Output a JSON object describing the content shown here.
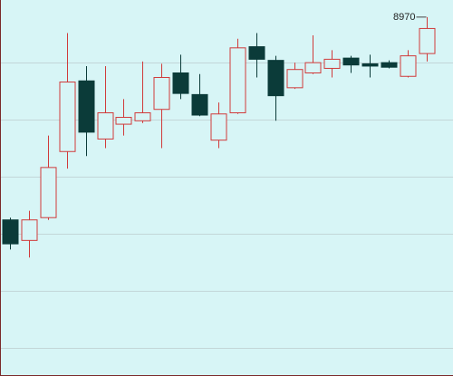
{
  "chart_data": {
    "type": "candlestick",
    "open": [
      8792,
      8774,
      8794,
      8852,
      8914,
      8863,
      8876,
      8879,
      8889,
      8921,
      8902,
      8862,
      8886,
      8944,
      8932,
      8908,
      8921,
      8925,
      8934,
      8929,
      8930,
      8918,
      8938
    ],
    "high": [
      8794,
      8800,
      8866,
      8956,
      8927,
      8927,
      8898,
      8931,
      8929,
      8937,
      8920,
      8895,
      8951,
      8956,
      8936,
      8930,
      8954,
      8941,
      8936,
      8937,
      8932,
      8941,
      8970
    ],
    "low": [
      8766,
      8759,
      8792,
      8837,
      8848,
      8855,
      8866,
      8877,
      8855,
      8898,
      8883,
      8855,
      8885,
      8917,
      8879,
      8907,
      8920,
      8917,
      8921,
      8917,
      8925,
      8917,
      8931
    ],
    "close": [
      8771,
      8792,
      8838,
      8913,
      8869,
      8886,
      8882,
      8886,
      8917,
      8903,
      8884,
      8885,
      8943,
      8933,
      8901,
      8924,
      8930,
      8933,
      8928,
      8927,
      8926,
      8936,
      8960
    ],
    "up_color": "#d03a3a",
    "down_color": "#0b3b39",
    "ylim": [
      8655,
      8985
    ],
    "yticks": [
      8680,
      8730,
      8780,
      8830,
      8880,
      8930
    ],
    "grid": true
  }
}
